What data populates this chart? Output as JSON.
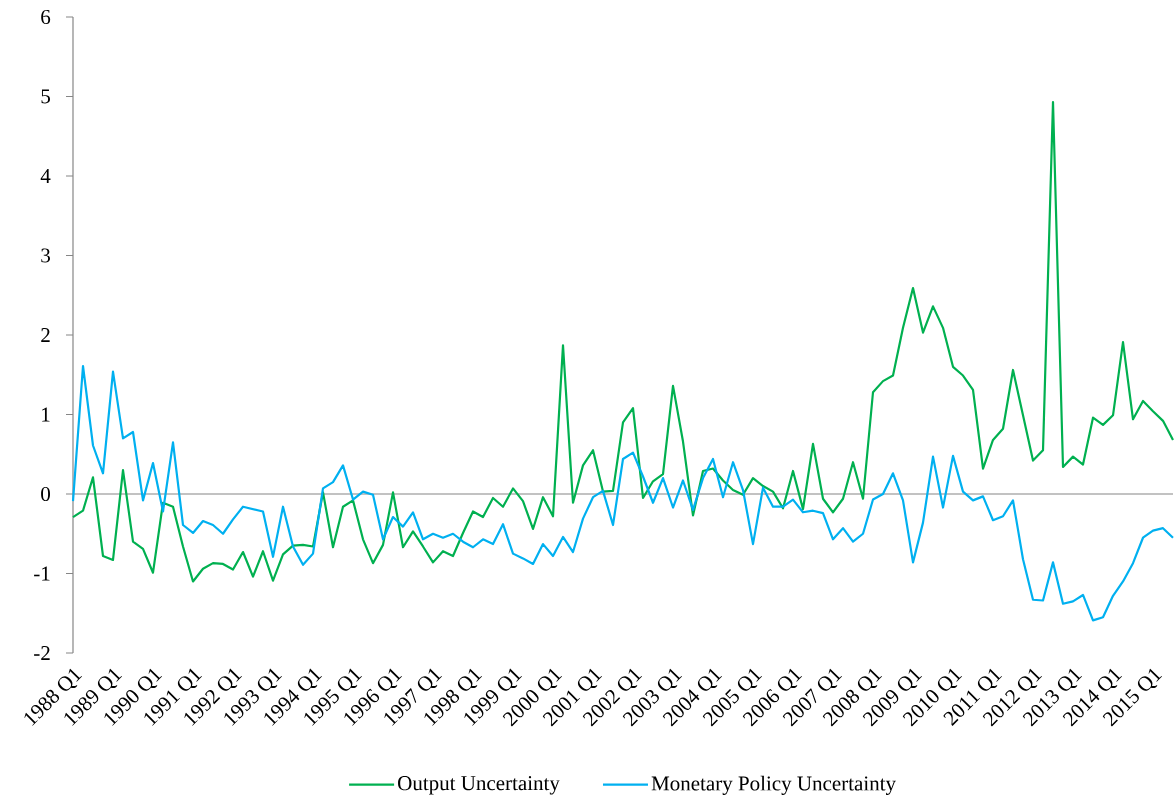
{
  "chart_data": {
    "type": "line",
    "categories": [
      "1988 Q1",
      null,
      null,
      null,
      "1989 Q1",
      null,
      null,
      null,
      "1990 Q1",
      null,
      null,
      null,
      "1991 Q1",
      null,
      null,
      null,
      "1992 Q1",
      null,
      null,
      null,
      "1993 Q1",
      null,
      null,
      null,
      "1994 Q1",
      null,
      null,
      null,
      "1995 Q1",
      null,
      null,
      null,
      "1996 Q1",
      null,
      null,
      null,
      "1997 Q1",
      null,
      null,
      null,
      "1998 Q1",
      null,
      null,
      null,
      "1999 Q1",
      null,
      null,
      null,
      "2000 Q1",
      null,
      null,
      null,
      "2001 Q1",
      null,
      null,
      null,
      "2002 Q1",
      null,
      null,
      null,
      "2003 Q1",
      null,
      null,
      null,
      "2004 Q1",
      null,
      null,
      null,
      "2005 Q1",
      null,
      null,
      null,
      "2006 Q1",
      null,
      null,
      null,
      "2007 Q1",
      null,
      null,
      null,
      "2008 Q1",
      null,
      null,
      null,
      "2009 Q1",
      null,
      null,
      null,
      "2010 Q1",
      null,
      null,
      null,
      "2011 Q1",
      null,
      null,
      null,
      "2012 Q1",
      null,
      null,
      null,
      "2013 Q1",
      null,
      null,
      null,
      "2014 Q1",
      null,
      null,
      null,
      "2015 Q1",
      null,
      null
    ],
    "series": [
      {
        "name": "Output Uncertainty",
        "color": "#00b050",
        "values": [
          -0.29,
          -0.21,
          0.21,
          -0.78,
          -0.83,
          0.3,
          -0.6,
          -0.69,
          -0.99,
          -0.11,
          -0.16,
          -0.66,
          -1.1,
          -0.94,
          -0.87,
          -0.88,
          -0.95,
          -0.73,
          -1.04,
          -0.72,
          -1.09,
          -0.76,
          -0.65,
          -0.64,
          -0.66,
          0.02,
          -0.67,
          -0.16,
          -0.08,
          -0.57,
          -0.87,
          -0.64,
          0.02,
          -0.67,
          -0.47,
          -0.66,
          -0.86,
          -0.72,
          -0.78,
          -0.49,
          -0.22,
          -0.29,
          -0.05,
          -0.16,
          0.07,
          -0.09,
          -0.44,
          -0.04,
          -0.28,
          1.87,
          -0.11,
          0.36,
          0.55,
          0.03,
          0.04,
          0.9,
          1.08,
          -0.05,
          0.16,
          0.25,
          1.36,
          0.66,
          -0.27,
          0.29,
          0.32,
          0.17,
          0.05,
          -0.01,
          0.2,
          0.1,
          0.03,
          -0.18,
          0.29,
          -0.19,
          0.63,
          -0.06,
          -0.23,
          -0.06,
          0.4,
          -0.06,
          1.28,
          1.42,
          1.49,
          2.09,
          2.59,
          2.03,
          2.36,
          2.09,
          1.6,
          1.49,
          1.31,
          0.32,
          0.68,
          0.82,
          1.56,
          0.99,
          0.42,
          0.55,
          4.93,
          0.34,
          0.47,
          0.37,
          0.96,
          0.87,
          0.99,
          1.91,
          0.94,
          1.17,
          1.04,
          0.92,
          0.68
        ]
      },
      {
        "name": "Monetary Policy Uncertainty",
        "color": "#00b0f0",
        "values": [
          -0.09,
          1.61,
          0.61,
          0.26,
          1.54,
          0.7,
          0.78,
          -0.08,
          0.39,
          -0.22,
          0.65,
          -0.39,
          -0.49,
          -0.34,
          -0.39,
          -0.5,
          -0.32,
          -0.16,
          -0.19,
          -0.22,
          -0.79,
          -0.16,
          -0.66,
          -0.89,
          -0.75,
          0.07,
          0.15,
          0.36,
          -0.07,
          0.03,
          -0.01,
          -0.57,
          -0.29,
          -0.41,
          -0.23,
          -0.57,
          -0.5,
          -0.55,
          -0.5,
          -0.6,
          -0.67,
          -0.57,
          -0.63,
          -0.38,
          -0.75,
          -0.81,
          -0.88,
          -0.63,
          -0.78,
          -0.54,
          -0.73,
          -0.31,
          -0.04,
          0.04,
          -0.39,
          0.44,
          0.52,
          0.22,
          -0.11,
          0.2,
          -0.17,
          0.17,
          -0.2,
          0.2,
          0.44,
          -0.04,
          0.4,
          0.05,
          -0.63,
          0.08,
          -0.16,
          -0.16,
          -0.07,
          -0.23,
          -0.21,
          -0.24,
          -0.57,
          -0.43,
          -0.6,
          -0.5,
          -0.07,
          0.0,
          0.26,
          -0.08,
          -0.86,
          -0.36,
          0.47,
          -0.17,
          0.48,
          0.03,
          -0.08,
          -0.03,
          -0.33,
          -0.28,
          -0.08,
          -0.82,
          -1.33,
          -1.34,
          -0.86,
          -1.38,
          -1.35,
          -1.27,
          -1.59,
          -1.55,
          -1.28,
          -1.1,
          -0.87,
          -0.55,
          -0.46,
          -0.43,
          -0.55
        ]
      }
    ],
    "ylim": [
      -2,
      6
    ],
    "yticks": [
      -2,
      -1,
      0,
      1,
      2,
      3,
      4,
      5,
      6
    ],
    "legend": "bottom"
  }
}
